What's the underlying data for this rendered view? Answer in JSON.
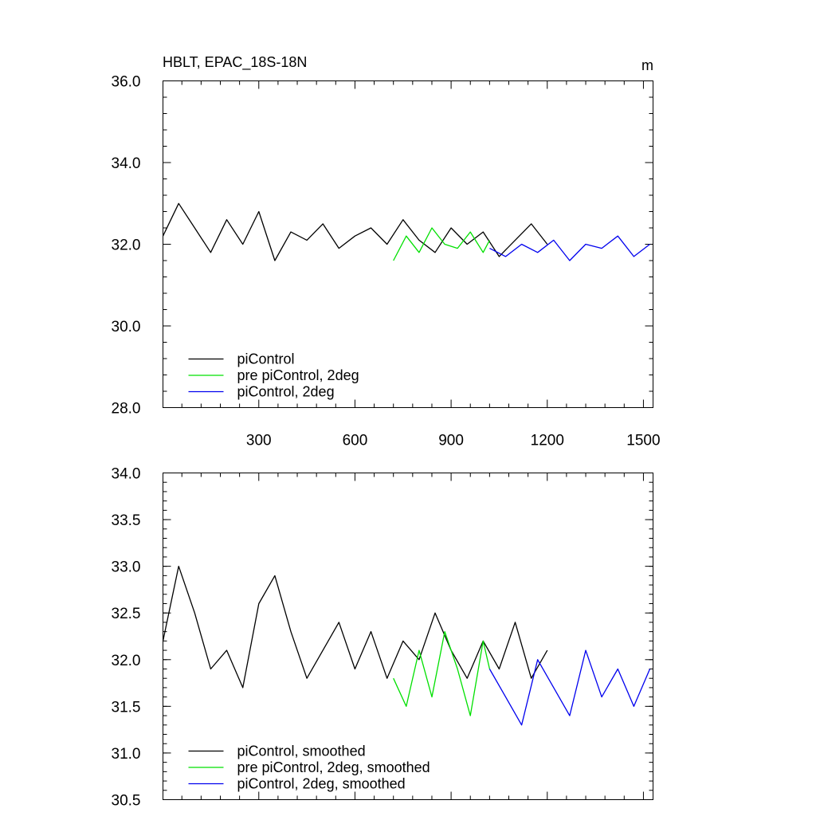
{
  "chart_data": [
    {
      "type": "line",
      "title": "HBLT, EPAC_18S-18N",
      "units": "m",
      "xlim": [
        1,
        1530
      ],
      "ylim": [
        28.0,
        36.0
      ],
      "xticks": [
        300,
        600,
        900,
        1200,
        1500
      ],
      "xtick_labels": [
        "300",
        "600",
        "900",
        "1200",
        "1500"
      ],
      "yticks": [
        28.0,
        30.0,
        32.0,
        34.0,
        36.0
      ],
      "ytick_labels": [
        "28.0",
        "30.0",
        "32.0",
        "34.0",
        "36.0"
      ],
      "grid": false,
      "legend_position": "lower-left",
      "series": [
        {
          "name": "piControl",
          "color": "#000000",
          "x": [
            1,
            50,
            100,
            150,
            200,
            250,
            300,
            350,
            400,
            450,
            500,
            550,
            600,
            650,
            700,
            750,
            800,
            850,
            900,
            950,
            1000,
            1050,
            1100,
            1150,
            1200
          ],
          "y": [
            32.2,
            33.0,
            32.4,
            31.8,
            32.6,
            32.0,
            32.8,
            31.6,
            32.3,
            32.1,
            32.5,
            31.9,
            32.2,
            32.4,
            32.0,
            32.6,
            32.1,
            31.8,
            32.4,
            32.0,
            32.3,
            31.7,
            32.1,
            32.5,
            32.0
          ]
        },
        {
          "name": "pre piControl, 2deg",
          "color": "#00e000",
          "x": [
            720,
            760,
            800,
            840,
            880,
            920,
            960,
            1000,
            1020
          ],
          "y": [
            31.6,
            32.2,
            31.8,
            32.4,
            32.0,
            31.9,
            32.3,
            31.8,
            32.1
          ]
        },
        {
          "name": "piControl, 2deg",
          "color": "#0000ee",
          "x": [
            1020,
            1070,
            1120,
            1170,
            1220,
            1270,
            1320,
            1370,
            1420,
            1470,
            1520
          ],
          "y": [
            31.9,
            31.7,
            32.0,
            31.8,
            32.1,
            31.6,
            32.0,
            31.9,
            32.2,
            31.7,
            32.0
          ]
        }
      ]
    },
    {
      "type": "line",
      "title": "",
      "xlim": [
        1,
        1530
      ],
      "ylim": [
        30.5,
        34.0
      ],
      "xticks": [
        300,
        600,
        900,
        1200,
        1500
      ],
      "yticks": [
        30.5,
        31.0,
        31.5,
        32.0,
        32.5,
        33.0,
        33.5,
        34.0
      ],
      "ytick_labels": [
        "30.5",
        "31.0",
        "31.5",
        "32.0",
        "32.5",
        "33.0",
        "33.5",
        "34.0"
      ],
      "grid": false,
      "legend_position": "lower-left",
      "series": [
        {
          "name": "piControl, smoothed",
          "color": "#000000",
          "x": [
            1,
            50,
            100,
            150,
            200,
            250,
            300,
            350,
            400,
            450,
            500,
            550,
            600,
            650,
            700,
            750,
            800,
            850,
            900,
            950,
            1000,
            1050,
            1100,
            1150,
            1200
          ],
          "y": [
            32.2,
            33.0,
            32.5,
            31.9,
            32.1,
            31.7,
            32.6,
            32.9,
            32.3,
            31.8,
            32.1,
            32.4,
            31.9,
            32.3,
            31.8,
            32.2,
            32.0,
            32.5,
            32.1,
            31.8,
            32.2,
            31.9,
            32.4,
            31.8,
            32.1
          ]
        },
        {
          "name": "pre piControl, 2deg, smoothed",
          "color": "#00e000",
          "x": [
            720,
            760,
            800,
            840,
            880,
            920,
            960,
            1000,
            1020
          ],
          "y": [
            31.8,
            31.5,
            32.1,
            31.6,
            32.3,
            31.9,
            31.4,
            32.2,
            31.9
          ]
        },
        {
          "name": "piControl, 2deg, smoothed",
          "color": "#0000ee",
          "x": [
            1020,
            1070,
            1120,
            1170,
            1220,
            1270,
            1320,
            1370,
            1420,
            1470,
            1520
          ],
          "y": [
            31.9,
            31.6,
            31.3,
            32.0,
            31.7,
            31.4,
            32.1,
            31.6,
            31.9,
            31.5,
            31.9
          ]
        }
      ]
    }
  ]
}
